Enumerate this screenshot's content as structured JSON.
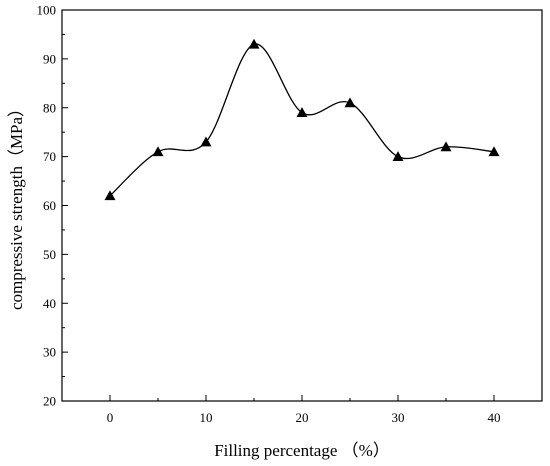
{
  "chart_data": {
    "type": "line",
    "xlabel": "Filling percentage （%）",
    "ylabel": "compressive strength（MPa）",
    "x": [
      0,
      5,
      10,
      15,
      20,
      25,
      30,
      35,
      40
    ],
    "series": [
      {
        "values": [
          62,
          71,
          73,
          93,
          79,
          81,
          70,
          72,
          71
        ]
      }
    ],
    "xlim": [
      -5,
      45
    ],
    "ylim": [
      20,
      100
    ],
    "xticks": [
      "0",
      "10",
      "20",
      "30",
      "40"
    ],
    "yticks": [
      "20",
      "30",
      "40",
      "50",
      "60",
      "70",
      "80",
      "90",
      "100"
    ],
    "grid": false,
    "marker": "triangle",
    "smooth": true,
    "line_color": "#000000"
  }
}
